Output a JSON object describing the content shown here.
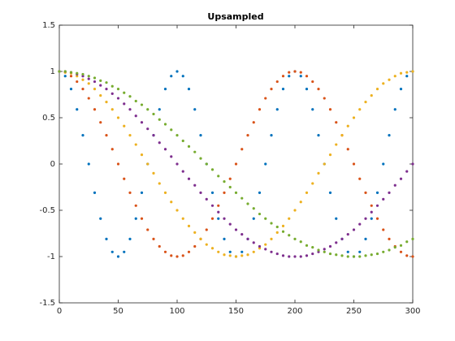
{
  "chart_data": {
    "type": "scatter",
    "title": "Upsampled",
    "x": [
      0,
      5,
      10,
      15,
      20,
      25,
      30,
      35,
      40,
      45,
      50,
      55,
      60,
      65,
      70,
      75,
      80,
      85,
      90,
      95,
      100,
      105,
      110,
      115,
      120,
      125,
      130,
      135,
      140,
      145,
      150,
      155,
      160,
      165,
      170,
      175,
      180,
      185,
      190,
      195,
      200,
      205,
      210,
      215,
      220,
      225,
      230,
      235,
      240,
      245,
      250,
      255,
      260,
      265,
      270,
      275,
      280,
      285,
      290,
      295,
      300
    ],
    "series": [
      {
        "color": "#0072bd",
        "values": [
          1,
          0.95,
          0.81,
          0.59,
          0.31,
          0,
          -0.31,
          -0.59,
          -0.81,
          -0.95,
          -1,
          -0.95,
          -0.81,
          -0.59,
          -0.31,
          0,
          0.31,
          0.59,
          0.81,
          0.95,
          1,
          0.95,
          0.81,
          0.59,
          0.31,
          0,
          -0.31,
          -0.59,
          -0.81,
          -0.95,
          -1,
          -0.95,
          -0.81,
          -0.59,
          -0.31,
          0,
          0.31,
          0.59,
          0.81,
          0.95,
          1,
          0.95,
          0.81,
          0.59,
          0.31,
          0,
          -0.31,
          -0.59,
          -0.81,
          -0.95,
          -1,
          -0.95,
          -0.81,
          -0.59,
          -0.31,
          0,
          0.31,
          0.59,
          0.81,
          0.95,
          1
        ]
      },
      {
        "color": "#d95319",
        "values": [
          1,
          0.99,
          0.95,
          0.89,
          0.81,
          0.71,
          0.59,
          0.45,
          0.31,
          0.16,
          0,
          -0.16,
          -0.31,
          -0.45,
          -0.59,
          -0.71,
          -0.81,
          -0.89,
          -0.95,
          -0.99,
          -1,
          -0.99,
          -0.95,
          -0.89,
          -0.81,
          -0.71,
          -0.59,
          -0.45,
          -0.31,
          -0.16,
          0,
          0.16,
          0.31,
          0.45,
          0.59,
          0.71,
          0.81,
          0.89,
          0.95,
          0.99,
          1,
          0.99,
          0.95,
          0.89,
          0.81,
          0.71,
          0.59,
          0.45,
          0.31,
          0.16,
          0,
          -0.16,
          -0.31,
          -0.45,
          -0.59,
          -0.71,
          -0.81,
          -0.89,
          -0.95,
          -0.99,
          -1
        ]
      },
      {
        "color": "#edb120",
        "values": [
          1,
          0.99,
          0.98,
          0.95,
          0.91,
          0.87,
          0.81,
          0.74,
          0.67,
          0.59,
          0.5,
          0.41,
          0.31,
          0.21,
          0.1,
          0,
          -0.1,
          -0.21,
          -0.31,
          -0.41,
          -0.5,
          -0.59,
          -0.67,
          -0.74,
          -0.81,
          -0.87,
          -0.91,
          -0.95,
          -0.98,
          -0.99,
          -1,
          -0.99,
          -0.98,
          -0.95,
          -0.91,
          -0.87,
          -0.81,
          -0.74,
          -0.67,
          -0.59,
          -0.5,
          -0.41,
          -0.31,
          -0.21,
          -0.1,
          0,
          0.1,
          0.21,
          0.31,
          0.41,
          0.5,
          0.59,
          0.67,
          0.74,
          0.81,
          0.87,
          0.91,
          0.95,
          0.98,
          0.99,
          1
        ]
      },
      {
        "color": "#7e2f8e",
        "values": [
          1,
          1,
          0.99,
          0.97,
          0.95,
          0.92,
          0.89,
          0.85,
          0.81,
          0.76,
          0.71,
          0.65,
          0.59,
          0.52,
          0.45,
          0.38,
          0.31,
          0.23,
          0.16,
          0.08,
          0,
          -0.08,
          -0.16,
          -0.23,
          -0.31,
          -0.38,
          -0.45,
          -0.52,
          -0.59,
          -0.65,
          -0.71,
          -0.76,
          -0.81,
          -0.85,
          -0.89,
          -0.92,
          -0.95,
          -0.97,
          -0.99,
          -1,
          -1,
          -1,
          -0.99,
          -0.97,
          -0.95,
          -0.92,
          -0.89,
          -0.85,
          -0.81,
          -0.76,
          -0.71,
          -0.65,
          -0.59,
          -0.52,
          -0.45,
          -0.38,
          -0.31,
          -0.23,
          -0.16,
          -0.08,
          0
        ]
      },
      {
        "color": "#77ac30",
        "values": [
          1,
          1,
          0.99,
          0.98,
          0.97,
          0.95,
          0.93,
          0.9,
          0.88,
          0.84,
          0.81,
          0.77,
          0.73,
          0.68,
          0.64,
          0.59,
          0.54,
          0.48,
          0.43,
          0.37,
          0.31,
          0.25,
          0.19,
          0.13,
          0.06,
          0,
          -0.06,
          -0.13,
          -0.19,
          -0.25,
          -0.31,
          -0.37,
          -0.43,
          -0.48,
          -0.54,
          -0.59,
          -0.64,
          -0.68,
          -0.73,
          -0.77,
          -0.81,
          -0.84,
          -0.88,
          -0.9,
          -0.93,
          -0.95,
          -0.97,
          -0.98,
          -0.99,
          -1,
          -1,
          -1,
          -0.99,
          -0.98,
          -0.97,
          -0.95,
          -0.93,
          -0.9,
          -0.88,
          -0.84,
          -0.81
        ]
      }
    ],
    "xlim": [
      0,
      300
    ],
    "xticks": [
      0,
      50,
      100,
      150,
      200,
      250,
      300
    ],
    "ylim": [
      -1.5,
      1.5
    ],
    "yticks": [
      -1.5,
      -1,
      -0.5,
      0,
      0.5,
      1,
      1.5
    ]
  }
}
